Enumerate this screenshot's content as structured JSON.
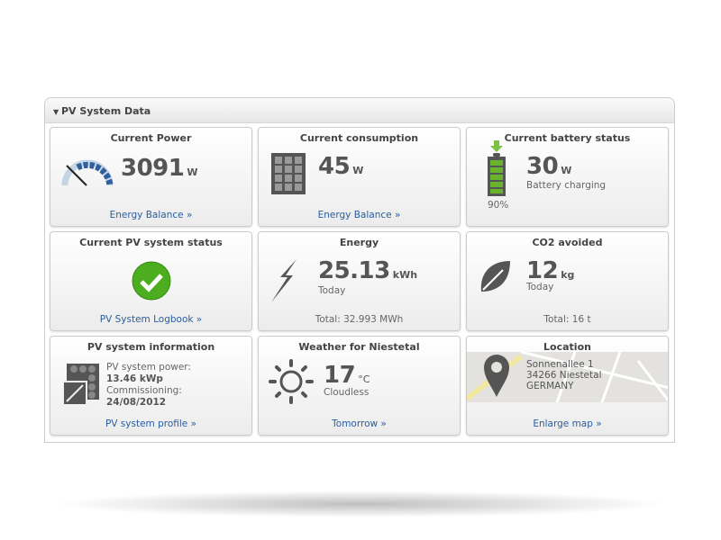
{
  "panel": {
    "title": "PV System Data"
  },
  "cards": {
    "power": {
      "title": "Current Power",
      "value": "3091",
      "unit": "W",
      "link": "Energy Balance »"
    },
    "consumption": {
      "title": "Current consumption",
      "value": "45",
      "unit": "W",
      "link": "Energy Balance »"
    },
    "battery": {
      "title": "Current battery status",
      "value": "30",
      "unit": "W",
      "status": "Battery charging",
      "charge": "90%"
    },
    "status": {
      "title": "Current PV system status",
      "link": "PV System Logbook »"
    },
    "energy": {
      "title": "Energy",
      "value": "25.13",
      "unit": "kWh",
      "period": "Today",
      "total": "Total: 32.993 MWh"
    },
    "co2": {
      "title": "CO2 avoided",
      "value": "12",
      "unit": "kg",
      "period": "Today",
      "total": "Total: 16 t"
    },
    "info": {
      "title": "PV system information",
      "power_label": "PV system power:",
      "power_value": "13.46 kWp",
      "comm_label": "Commissioning:",
      "comm_value": "24/08/2012",
      "link": "PV system profile »"
    },
    "weather": {
      "title": "Weather for Niestetal",
      "value": "17",
      "unit": "°C",
      "condition": "Cloudless",
      "link": "Tomorrow »"
    },
    "location": {
      "title": "Location",
      "street": "Sonnenallee 1",
      "city": "34266 Niestetal",
      "country": "GERMANY",
      "link": "Enlarge map »"
    }
  },
  "colors": {
    "link": "#2a5d9f",
    "battery_green": "#6ab42d",
    "status_ok": "#4cae1f"
  }
}
